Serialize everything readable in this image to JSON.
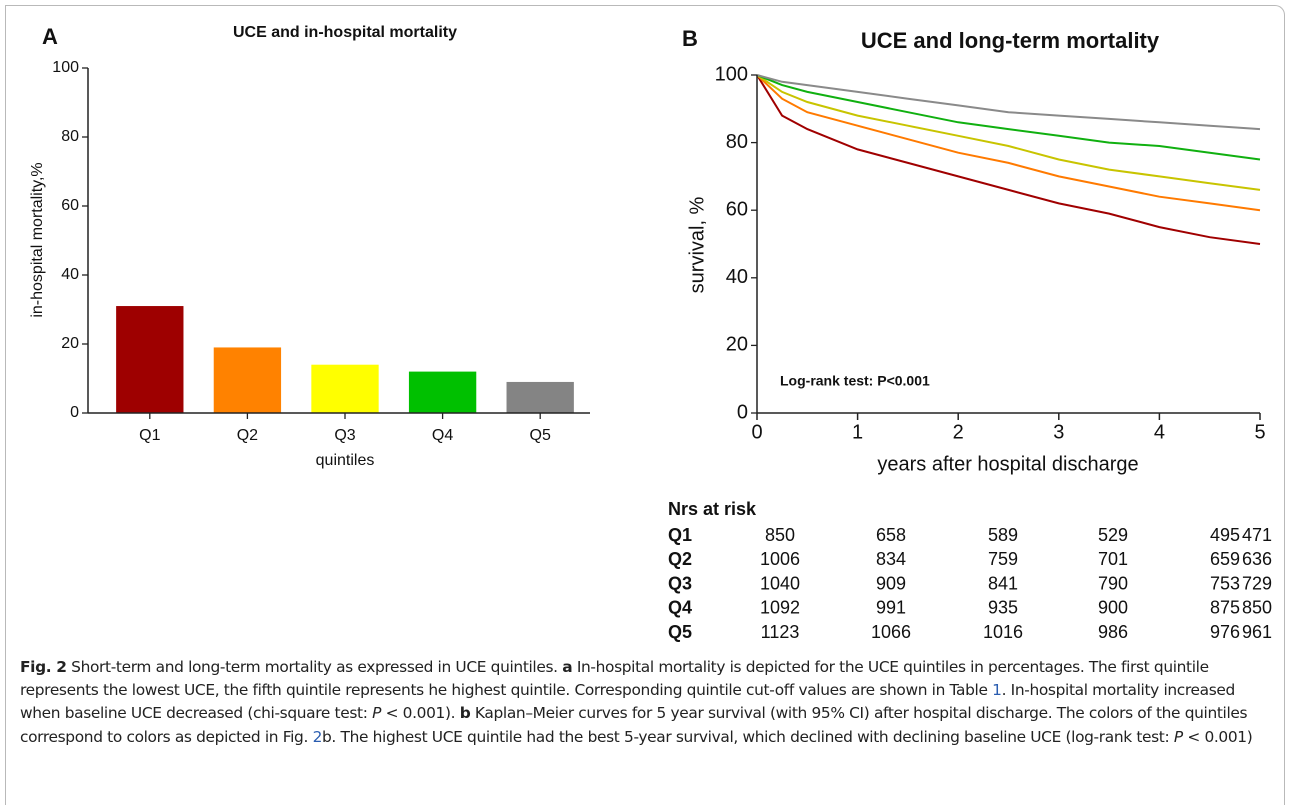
{
  "chart_data": [
    {
      "type": "bar",
      "panel": "A",
      "title": "UCE and in-hospital mortality",
      "ylabel": "in-hospital mortality,%",
      "xlabel": "quintiles",
      "categories": [
        "Q1",
        "Q2",
        "Q3",
        "Q4",
        "Q5"
      ],
      "values": [
        31,
        19,
        14,
        12,
        9
      ],
      "colors": [
        "#9e0000",
        "#ff8200",
        "#ffff00",
        "#00c000",
        "#848484"
      ],
      "ylim": [
        0,
        100
      ],
      "yticks": [
        0,
        20,
        40,
        60,
        80,
        100
      ]
    },
    {
      "type": "line",
      "panel": "B",
      "title": "UCE and long-term mortality",
      "ylabel": "survival, %",
      "xlabel": "years after hospital discharge",
      "annotation": "Log-rank test: P<0.001",
      "x": [
        0,
        0.25,
        0.5,
        1,
        1.5,
        2,
        2.5,
        3,
        3.5,
        4,
        4.5,
        5
      ],
      "series": [
        {
          "color": "#a00000",
          "values": [
            100,
            88,
            84,
            78,
            74,
            70,
            66,
            62,
            59,
            55,
            52,
            50
          ]
        },
        {
          "color": "#ff7a00",
          "values": [
            100,
            93,
            89,
            85,
            81,
            77,
            74,
            70,
            67,
            64,
            62,
            60
          ]
        },
        {
          "color": "#c8c400",
          "values": [
            100,
            95,
            92,
            88,
            85,
            82,
            79,
            75,
            72,
            70,
            68,
            66
          ]
        },
        {
          "color": "#10b010",
          "values": [
            100,
            97,
            95,
            92,
            89,
            86,
            84,
            82,
            80,
            79,
            77,
            75
          ]
        },
        {
          "color": "#8a8a8a",
          "values": [
            100,
            98,
            97,
            95,
            93,
            91,
            89,
            88,
            87,
            86,
            85,
            84
          ]
        }
      ],
      "xlim": [
        0,
        5
      ],
      "xticks": [
        0,
        1,
        2,
        3,
        4,
        5
      ],
      "ylim": [
        0,
        100
      ],
      "yticks": [
        0,
        20,
        40,
        60,
        80,
        100
      ]
    }
  ],
  "risk_table": {
    "title": "Nrs at risk",
    "rows": [
      {
        "label": "Q1",
        "values": [
          850,
          658,
          589,
          529,
          495,
          471
        ]
      },
      {
        "label": "Q2",
        "values": [
          1006,
          834,
          759,
          701,
          659,
          636
        ]
      },
      {
        "label": "Q3",
        "values": [
          1040,
          909,
          841,
          790,
          753,
          729
        ]
      },
      {
        "label": "Q4",
        "values": [
          1092,
          991,
          935,
          900,
          875,
          850
        ]
      },
      {
        "label": "Q5",
        "values": [
          1123,
          1066,
          1016,
          986,
          976,
          961
        ]
      }
    ]
  },
  "caption": {
    "label": "Fig. 2",
    "parts": [
      {
        "text": " Short-term and long-term mortality as expressed in UCE quintiles. "
      },
      {
        "text": "a",
        "style": "bold"
      },
      {
        "text": " In-hospital mortality is depicted for the UCE quintiles in percentages. The first quintile represents the lowest UCE, the fifth quintile represents he highest quintile. Corresponding quintile cut-off values are shown in Table "
      },
      {
        "text": "1",
        "style": "link"
      },
      {
        "text": ". In-hospital mortality increased when baseline UCE decreased (chi-square test: "
      },
      {
        "text": "P",
        "style": "italic"
      },
      {
        "text": " < 0.001). "
      },
      {
        "text": "b",
        "style": "bold"
      },
      {
        "text": " Kaplan–Meier curves for 5 year survival (with 95% CI) after hospital discharge. The colors of the quintiles correspond to colors as depicted in Fig. "
      },
      {
        "text": "2",
        "style": "link"
      },
      {
        "text": "b. The highest UCE quintile had the best 5-year survival, which declined with declining baseline UCE (log-rank test: "
      },
      {
        "text": "P",
        "style": "italic"
      },
      {
        "text": " < 0.001)"
      }
    ]
  }
}
